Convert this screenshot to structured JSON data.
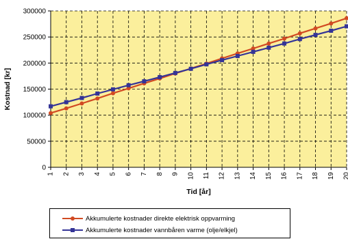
{
  "chart_data": {
    "type": "line",
    "ylabel": "Kostnad [kr]",
    "xlabel": "Tid [år]",
    "x": [
      1,
      2,
      3,
      4,
      5,
      6,
      7,
      8,
      9,
      10,
      11,
      12,
      13,
      14,
      15,
      16,
      17,
      18,
      19,
      20
    ],
    "ylim": [
      0,
      300000
    ],
    "yticks": [
      0,
      50000,
      100000,
      150000,
      200000,
      250000,
      300000
    ],
    "grid": true,
    "legend_position": "bottom",
    "background_color": "#fbef9c",
    "series": [
      {
        "name": "Akkumulerte kostnader direkte elektrisk oppvarming",
        "color": "#d14a22",
        "marker": "circle",
        "values": [
          104000,
          113000,
          122500,
          132000,
          142000,
          151500,
          161000,
          170500,
          180000,
          189500,
          199000,
          209000,
          218500,
          228000,
          237500,
          247000,
          257000,
          266500,
          276000,
          286000
        ]
      },
      {
        "name": "Akkumulerte kostnader vannbåren varme (olje/elkjel)",
        "color": "#343497",
        "marker": "square",
        "values": [
          117000,
          125000,
          133000,
          141500,
          149500,
          157500,
          165000,
          173000,
          181000,
          189000,
          197500,
          205500,
          213500,
          221500,
          229500,
          237500,
          246000,
          254000,
          262000,
          270500
        ]
      }
    ]
  }
}
